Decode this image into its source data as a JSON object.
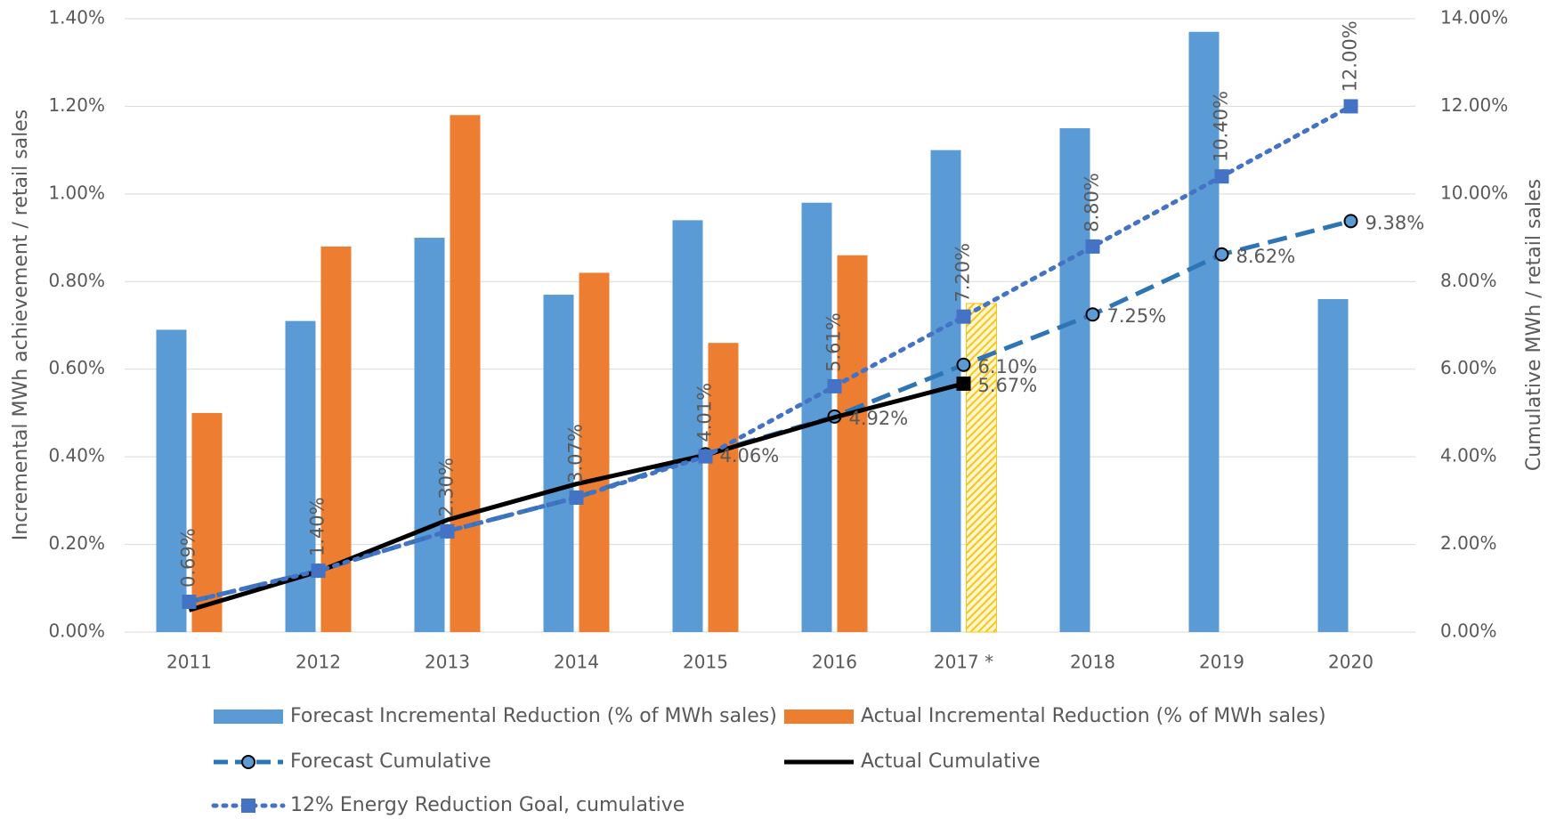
{
  "chart_data": {
    "type": "bar",
    "categories": [
      "2011",
      "2012",
      "2013",
      "2014",
      "2015",
      "2016",
      "2017 *",
      "2018",
      "2019",
      "2020"
    ],
    "ylabel": "Incremental MWh achievement / retail sales",
    "y2label": "Cumulative MWh / retail sales",
    "ylim": [
      0,
      1.4
    ],
    "yticks": [
      {
        "value": 0,
        "label": "0.00%"
      },
      {
        "value": 0.2,
        "label": "0.20%"
      },
      {
        "value": 0.4,
        "label": "0.40%"
      },
      {
        "value": 0.6,
        "label": "0.60%"
      },
      {
        "value": 0.8,
        "label": "0.80%"
      },
      {
        "value": 1.0,
        "label": "1.00%"
      },
      {
        "value": 1.2,
        "label": "1.20%"
      },
      {
        "value": 1.4,
        "label": "1.40%"
      }
    ],
    "y2lim": [
      0,
      14
    ],
    "y2ticks": [
      {
        "value": 0,
        "label": "0.00%"
      },
      {
        "value": 2,
        "label": "2.00%"
      },
      {
        "value": 4,
        "label": "4.00%"
      },
      {
        "value": 6,
        "label": "6.00%"
      },
      {
        "value": 8,
        "label": "8.00%"
      },
      {
        "value": 10,
        "label": "10.00%"
      },
      {
        "value": 12,
        "label": "12.00%"
      },
      {
        "value": 14,
        "label": "14.00%"
      }
    ],
    "grid": true,
    "legend": "bottom",
    "series": [
      {
        "name": "Forecast Incremental Reduction (% of MWh sales)",
        "kind": "bar",
        "color": "#5b9bd5",
        "values": [
          0.69,
          0.71,
          0.9,
          0.77,
          0.94,
          0.98,
          1.1,
          1.15,
          1.37,
          0.76
        ]
      },
      {
        "name": "Actual Incremental Reduction (% of MWh sales)",
        "kind": "bar",
        "color": "#ed7d31",
        "hatch_color": "#f5c518",
        "hatched_indices": [
          6
        ],
        "values": [
          0.5,
          0.88,
          1.18,
          0.82,
          0.66,
          0.86,
          0.75,
          null,
          null,
          null
        ]
      },
      {
        "name": "Forecast Cumulative",
        "kind": "line",
        "style": "dashed",
        "marker": "circle",
        "color": "#2e75b6",
        "axis": "y2",
        "values": [
          0.69,
          1.4,
          2.3,
          3.07,
          4.06,
          4.92,
          6.1,
          7.25,
          8.62,
          9.38
        ],
        "value_labels": [
          null,
          null,
          null,
          null,
          "4.06%",
          "4.92%",
          "6.10%",
          "7.25%",
          "8.62%",
          "9.38%"
        ]
      },
      {
        "name": "Actual Cumulative",
        "kind": "line",
        "style": "solid",
        "marker": "square-end",
        "color": "#000000",
        "axis": "y2",
        "values": [
          0.5,
          1.38,
          2.56,
          3.38,
          4.04,
          4.9,
          5.67,
          null,
          null,
          null
        ],
        "value_labels": [
          null,
          null,
          null,
          null,
          null,
          null,
          "5.67%",
          null,
          null,
          null
        ]
      },
      {
        "name": "12% Energy Reduction Goal, cumulative",
        "kind": "line",
        "style": "dotted",
        "marker": "square",
        "color": "#4472c4",
        "axis": "y2",
        "values": [
          0.69,
          1.4,
          2.3,
          3.07,
          4.01,
          5.61,
          7.2,
          8.8,
          10.4,
          12.0
        ],
        "value_labels": [
          "0.69%",
          "1.40%",
          "2.30%",
          "3.07%",
          "4.01%",
          "5.61%",
          "7.20%",
          "8.80%",
          "10.40%",
          "12.00%"
        ]
      }
    ]
  }
}
